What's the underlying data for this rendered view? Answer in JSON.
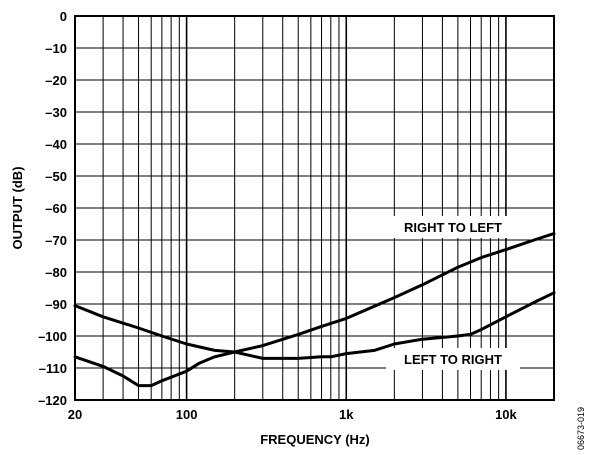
{
  "chart_data": {
    "type": "line",
    "xlabel": "FREQUENCY (Hz)",
    "ylabel": "OUTPUT (dB)",
    "xscale": "log",
    "xlim": [
      20,
      20000
    ],
    "ylim": [
      -120,
      0
    ],
    "grid": true,
    "x_tick_labels": [
      {
        "value": 20,
        "label": "20"
      },
      {
        "value": 100,
        "label": "100"
      },
      {
        "value": 1000,
        "label": "1k"
      },
      {
        "value": 10000,
        "label": "10k"
      }
    ],
    "y_tick_labels": [
      {
        "value": 0,
        "label": "0"
      },
      {
        "value": -10,
        "label": "–10"
      },
      {
        "value": -20,
        "label": "–20"
      },
      {
        "value": -30,
        "label": "–30"
      },
      {
        "value": -40,
        "label": "–40"
      },
      {
        "value": -50,
        "label": "–50"
      },
      {
        "value": -60,
        "label": "–60"
      },
      {
        "value": -70,
        "label": "–70"
      },
      {
        "value": -80,
        "label": "–80"
      },
      {
        "value": -90,
        "label": "–90"
      },
      {
        "value": -100,
        "label": "–100"
      },
      {
        "value": -110,
        "label": "–110"
      },
      {
        "value": -120,
        "label": "–120"
      }
    ],
    "series": [
      {
        "name": "RIGHT TO LEFT",
        "x": [
          20,
          30,
          50,
          70,
          100,
          150,
          200,
          300,
          500,
          700,
          1000,
          2000,
          3000,
          5000,
          7000,
          10000,
          15000,
          20000
        ],
        "y": [
          -90.5,
          -94,
          -97.5,
          -100,
          -102.5,
          -104.5,
          -105,
          -103,
          -99.5,
          -97,
          -94.5,
          -88,
          -84,
          -78.5,
          -75.5,
          -73,
          -70,
          -68
        ]
      },
      {
        "name": "LEFT TO RIGHT",
        "x": [
          20,
          30,
          40,
          50,
          60,
          70,
          100,
          120,
          150,
          200,
          300,
          500,
          700,
          800,
          1000,
          1500,
          2000,
          3000,
          5000,
          6000,
          7000,
          10000,
          15000,
          20000
        ],
        "y": [
          -106.5,
          -109.5,
          -112.5,
          -115.5,
          -115.5,
          -114,
          -111,
          -108.5,
          -106.5,
          -105,
          -107,
          -107,
          -106.5,
          -106.5,
          -105.5,
          -104.5,
          -102.5,
          -101,
          -100,
          -99.5,
          -98,
          -94,
          -89.5,
          -86.5
        ]
      }
    ],
    "annotations": [
      "RIGHT TO LEFT",
      "LEFT TO RIGHT"
    ],
    "figure_id": "06673-019"
  }
}
